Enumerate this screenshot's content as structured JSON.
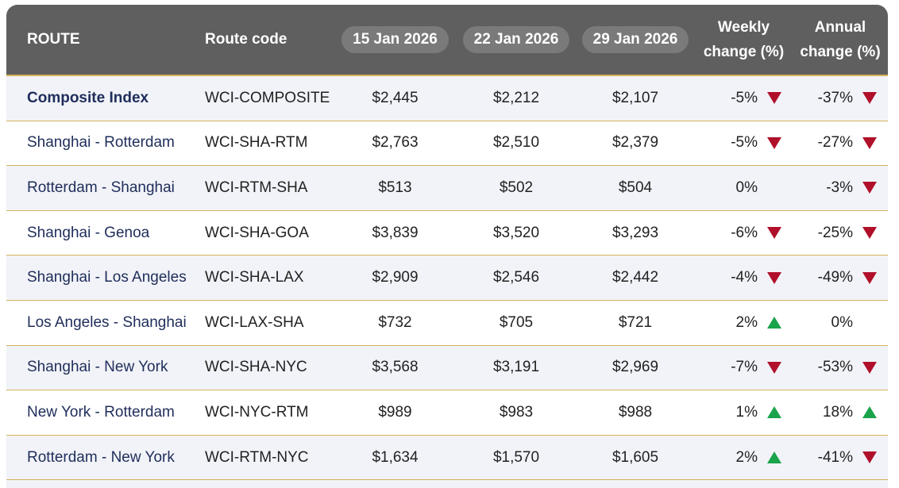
{
  "table": {
    "headers": [
      "ROUTE",
      "Route code",
      "15 Jan 2026",
      "22 Jan 2026",
      "29 Jan 2026",
      "Weekly change (%)",
      "Annual change (%)"
    ],
    "rows": [
      [
        "Composite Index",
        "WCI-COMPOSITE",
        "$2,445",
        "$2,212",
        "$2,107",
        "-5%",
        "-37%"
      ],
      [
        "Shanghai - Rotterdam",
        "WCI-SHA-RTM",
        "$2,763",
        "$2,510",
        "$2,379",
        "-5%",
        "-27%"
      ],
      [
        "Rotterdam - Shanghai",
        "WCI-RTM-SHA",
        "$513",
        "$502",
        "$504",
        "0%",
        "-3%"
      ],
      [
        "Shanghai - Genoa",
        "WCI-SHA-GOA",
        "$3,839",
        "$3,520",
        "$3,293",
        "-6%",
        "-25%"
      ],
      [
        "Shanghai - Los Angeles",
        "WCI-SHA-LAX",
        "$2,909",
        "$2,546",
        "$2,442",
        "-4%",
        "-49%"
      ],
      [
        "Los Angeles - Shanghai",
        "WCI-LAX-SHA",
        "$732",
        "$705",
        "$721",
        "2%",
        "0%"
      ],
      [
        "Shanghai - New York",
        "WCI-SHA-NYC",
        "$3,568",
        "$3,191",
        "$2,969",
        "-7%",
        "-53%"
      ],
      [
        "New York - Rotterdam",
        "WCI-NYC-RTM",
        "$989",
        "$983",
        "$988",
        "1%",
        "18%"
      ],
      [
        "Rotterdam - New York",
        "WCI-RTM-NYC",
        "$1,634",
        "$1,570",
        "$1,605",
        "2%",
        "-41%"
      ]
    ]
  }
}
